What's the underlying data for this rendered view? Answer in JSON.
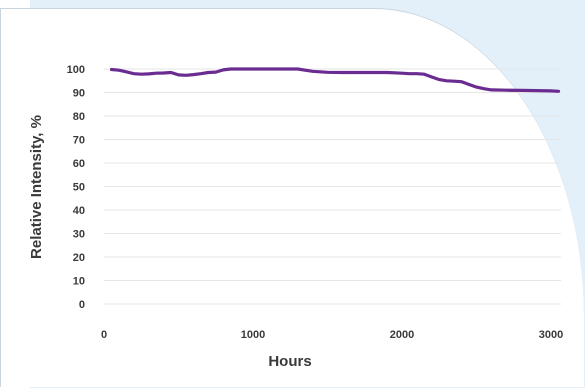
{
  "chart_data": {
    "type": "line",
    "title": "",
    "xlabel": "Hours",
    "ylabel": "Relative Intensity, %",
    "xlim": [
      0,
      3100
    ],
    "ylim": [
      0,
      100
    ],
    "x_ticks": [
      0,
      1000,
      2000,
      3000
    ],
    "y_ticks": [
      0,
      10,
      20,
      30,
      40,
      50,
      60,
      70,
      80,
      90,
      100
    ],
    "grid": true,
    "legend": "none",
    "series": [
      {
        "color": "#6b2c91",
        "x": [
          50,
          100,
          150,
          200,
          250,
          300,
          350,
          400,
          450,
          500,
          550,
          600,
          650,
          700,
          750,
          800,
          850,
          900,
          950,
          1000,
          1100,
          1200,
          1300,
          1400,
          1500,
          1600,
          1700,
          1800,
          1900,
          2000,
          2050,
          2100,
          2150,
          2200,
          2250,
          2300,
          2350,
          2400,
          2450,
          2500,
          2550,
          2600,
          2700,
          2800,
          2900,
          3000,
          3050
        ],
        "y": [
          99.8,
          99.5,
          98.8,
          98.0,
          97.8,
          97.9,
          98.2,
          98.3,
          98.5,
          97.5,
          97.3,
          97.6,
          98.0,
          98.5,
          98.7,
          99.6,
          100,
          100,
          100,
          100,
          100,
          100,
          100,
          99.0,
          98.6,
          98.5,
          98.5,
          98.5,
          98.5,
          98.2,
          98.0,
          98.0,
          97.8,
          96.6,
          95.5,
          95.0,
          94.8,
          94.6,
          93.4,
          92.3,
          91.6,
          91.1,
          91.0,
          90.9,
          90.8,
          90.7,
          90.5
        ]
      }
    ]
  }
}
